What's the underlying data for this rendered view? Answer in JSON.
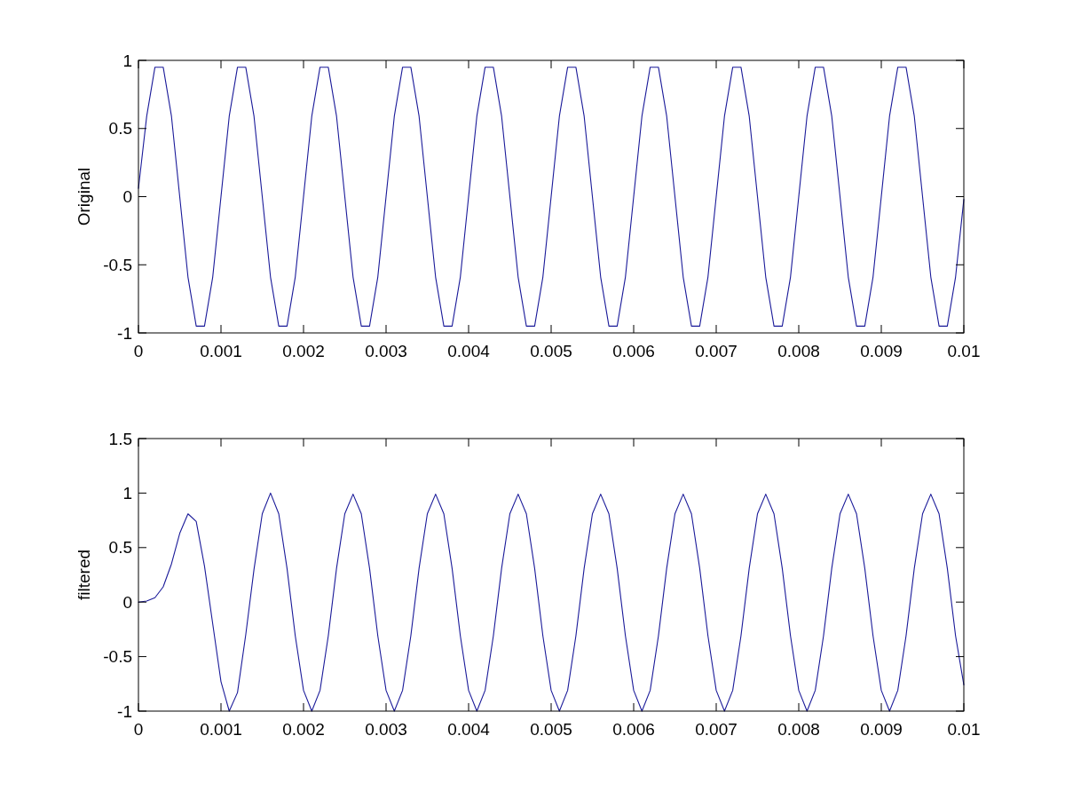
{
  "chart_data": [
    {
      "type": "line",
      "ylabel": "Original",
      "xlim": [
        0,
        0.01
      ],
      "ylim": [
        -1,
        1
      ],
      "xticks": [
        0,
        0.001,
        0.002,
        0.003,
        0.004,
        0.005,
        0.006,
        0.007,
        0.008,
        0.009,
        0.01
      ],
      "yticks": [
        -1,
        -0.5,
        0,
        0.5,
        1
      ],
      "color": "#1a1a99",
      "x": [
        0,
        0.0001,
        0.0002,
        0.0003,
        0.0004,
        0.0005,
        0.0006,
        0.0007,
        0.0008,
        0.0009,
        0.001,
        0.0011,
        0.0012,
        0.0013,
        0.0014,
        0.0015,
        0.0016,
        0.0017,
        0.0018,
        0.0019,
        0.002,
        0.0021,
        0.0022,
        0.0023,
        0.0024,
        0.0025,
        0.0026,
        0.0027,
        0.0028,
        0.0029,
        0.003,
        0.0031,
        0.0032,
        0.0033,
        0.0034,
        0.0035,
        0.0036,
        0.0037,
        0.0038,
        0.0039,
        0.004,
        0.0041,
        0.0042,
        0.0043,
        0.0044,
        0.0045,
        0.0046,
        0.0047,
        0.0048,
        0.0049,
        0.005,
        0.0051,
        0.0052,
        0.0053,
        0.0054,
        0.0055,
        0.0056,
        0.0057,
        0.0058,
        0.0059,
        0.006,
        0.0061,
        0.0062,
        0.0063,
        0.0064,
        0.0065,
        0.0066,
        0.0067,
        0.0068,
        0.0069,
        0.007,
        0.0071,
        0.0072,
        0.0073,
        0.0074,
        0.0075,
        0.0076,
        0.0077,
        0.0078,
        0.0079,
        0.008,
        0.0081,
        0.0082,
        0.0083,
        0.0084,
        0.0085,
        0.0086,
        0.0087,
        0.0088,
        0.0089,
        0.009,
        0.0091,
        0.0092,
        0.0093,
        0.0094,
        0.0095,
        0.0096,
        0.0097,
        0.0098,
        0.0099,
        0.01
      ],
      "values": [
        0.06,
        0.59,
        0.95,
        0.95,
        0.59,
        0,
        -0.59,
        -0.95,
        -0.95,
        -0.59,
        0,
        0.59,
        0.95,
        0.95,
        0.59,
        0,
        -0.59,
        -0.95,
        -0.95,
        -0.59,
        0,
        0.59,
        0.95,
        0.95,
        0.59,
        0,
        -0.59,
        -0.95,
        -0.95,
        -0.59,
        0,
        0.59,
        0.95,
        0.95,
        0.59,
        0,
        -0.59,
        -0.95,
        -0.95,
        -0.59,
        0,
        0.59,
        0.95,
        0.95,
        0.59,
        0,
        -0.59,
        -0.95,
        -0.95,
        -0.59,
        0,
        0.59,
        0.95,
        0.95,
        0.59,
        0,
        -0.59,
        -0.95,
        -0.95,
        -0.59,
        0,
        0.59,
        0.95,
        0.95,
        0.59,
        0,
        -0.59,
        -0.95,
        -0.95,
        -0.59,
        0,
        0.59,
        0.95,
        0.95,
        0.59,
        0,
        -0.59,
        -0.95,
        -0.95,
        -0.59,
        0,
        0.59,
        0.95,
        0.95,
        0.59,
        0,
        -0.59,
        -0.95,
        -0.95,
        -0.59,
        0,
        0.59,
        0.95,
        0.95,
        0.59,
        0,
        -0.59,
        -0.95,
        -0.95,
        -0.59,
        -0.02
      ]
    },
    {
      "type": "line",
      "ylabel": "filtered",
      "xlim": [
        0,
        0.01
      ],
      "ylim": [
        -1,
        1.5
      ],
      "xticks": [
        0,
        0.001,
        0.002,
        0.003,
        0.004,
        0.005,
        0.006,
        0.007,
        0.008,
        0.009,
        0.01
      ],
      "yticks": [
        -1,
        -0.5,
        0,
        0.5,
        1,
        1.5
      ],
      "color": "#1a1a99",
      "x": [
        0,
        0.0001,
        0.0002,
        0.0003,
        0.0004,
        0.0005,
        0.0006,
        0.0007,
        0.0008,
        0.0009,
        0.001,
        0.0011,
        0.0012,
        0.0013,
        0.0014,
        0.0015,
        0.0016,
        0.0017,
        0.0018,
        0.0019,
        0.002,
        0.0021,
        0.0022,
        0.0023,
        0.0024,
        0.0025,
        0.0026,
        0.0027,
        0.0028,
        0.0029,
        0.003,
        0.0031,
        0.0032,
        0.0033,
        0.0034,
        0.0035,
        0.0036,
        0.0037,
        0.0038,
        0.0039,
        0.004,
        0.0041,
        0.0042,
        0.0043,
        0.0044,
        0.0045,
        0.0046,
        0.0047,
        0.0048,
        0.0049,
        0.005,
        0.0051,
        0.0052,
        0.0053,
        0.0054,
        0.0055,
        0.0056,
        0.0057,
        0.0058,
        0.0059,
        0.006,
        0.0061,
        0.0062,
        0.0063,
        0.0064,
        0.0065,
        0.0066,
        0.0067,
        0.0068,
        0.0069,
        0.007,
        0.0071,
        0.0072,
        0.0073,
        0.0074,
        0.0075,
        0.0076,
        0.0077,
        0.0078,
        0.0079,
        0.008,
        0.0081,
        0.0082,
        0.0083,
        0.0084,
        0.0085,
        0.0086,
        0.0087,
        0.0088,
        0.0089,
        0.009,
        0.0091,
        0.0092,
        0.0093,
        0.0094,
        0.0095,
        0.0096,
        0.0097,
        0.0098,
        0.0099,
        0.01
      ],
      "values": [
        0,
        0.01,
        0.04,
        0.14,
        0.35,
        0.63,
        0.81,
        0.74,
        0.33,
        -0.2,
        -0.73,
        -1,
        -0.83,
        -0.3,
        0.3,
        0.81,
        1,
        0.81,
        0.31,
        -0.31,
        -0.81,
        -1,
        -0.81,
        -0.31,
        0.31,
        0.81,
        0.99,
        0.81,
        0.31,
        -0.31,
        -0.81,
        -1,
        -0.81,
        -0.31,
        0.31,
        0.81,
        0.99,
        0.81,
        0.31,
        -0.31,
        -0.81,
        -1,
        -0.81,
        -0.31,
        0.31,
        0.81,
        0.99,
        0.81,
        0.31,
        -0.31,
        -0.81,
        -1,
        -0.81,
        -0.31,
        0.31,
        0.81,
        0.99,
        0.81,
        0.31,
        -0.31,
        -0.81,
        -1,
        -0.81,
        -0.31,
        0.31,
        0.81,
        0.99,
        0.81,
        0.31,
        -0.31,
        -0.81,
        -1,
        -0.81,
        -0.31,
        0.31,
        0.81,
        0.99,
        0.81,
        0.31,
        -0.31,
        -0.81,
        -1,
        -0.81,
        -0.31,
        0.31,
        0.81,
        0.99,
        0.81,
        0.31,
        -0.31,
        -0.81,
        -1,
        -0.81,
        -0.31,
        0.31,
        0.81,
        0.99,
        0.81,
        0.31,
        -0.31,
        -0.76
      ]
    }
  ]
}
